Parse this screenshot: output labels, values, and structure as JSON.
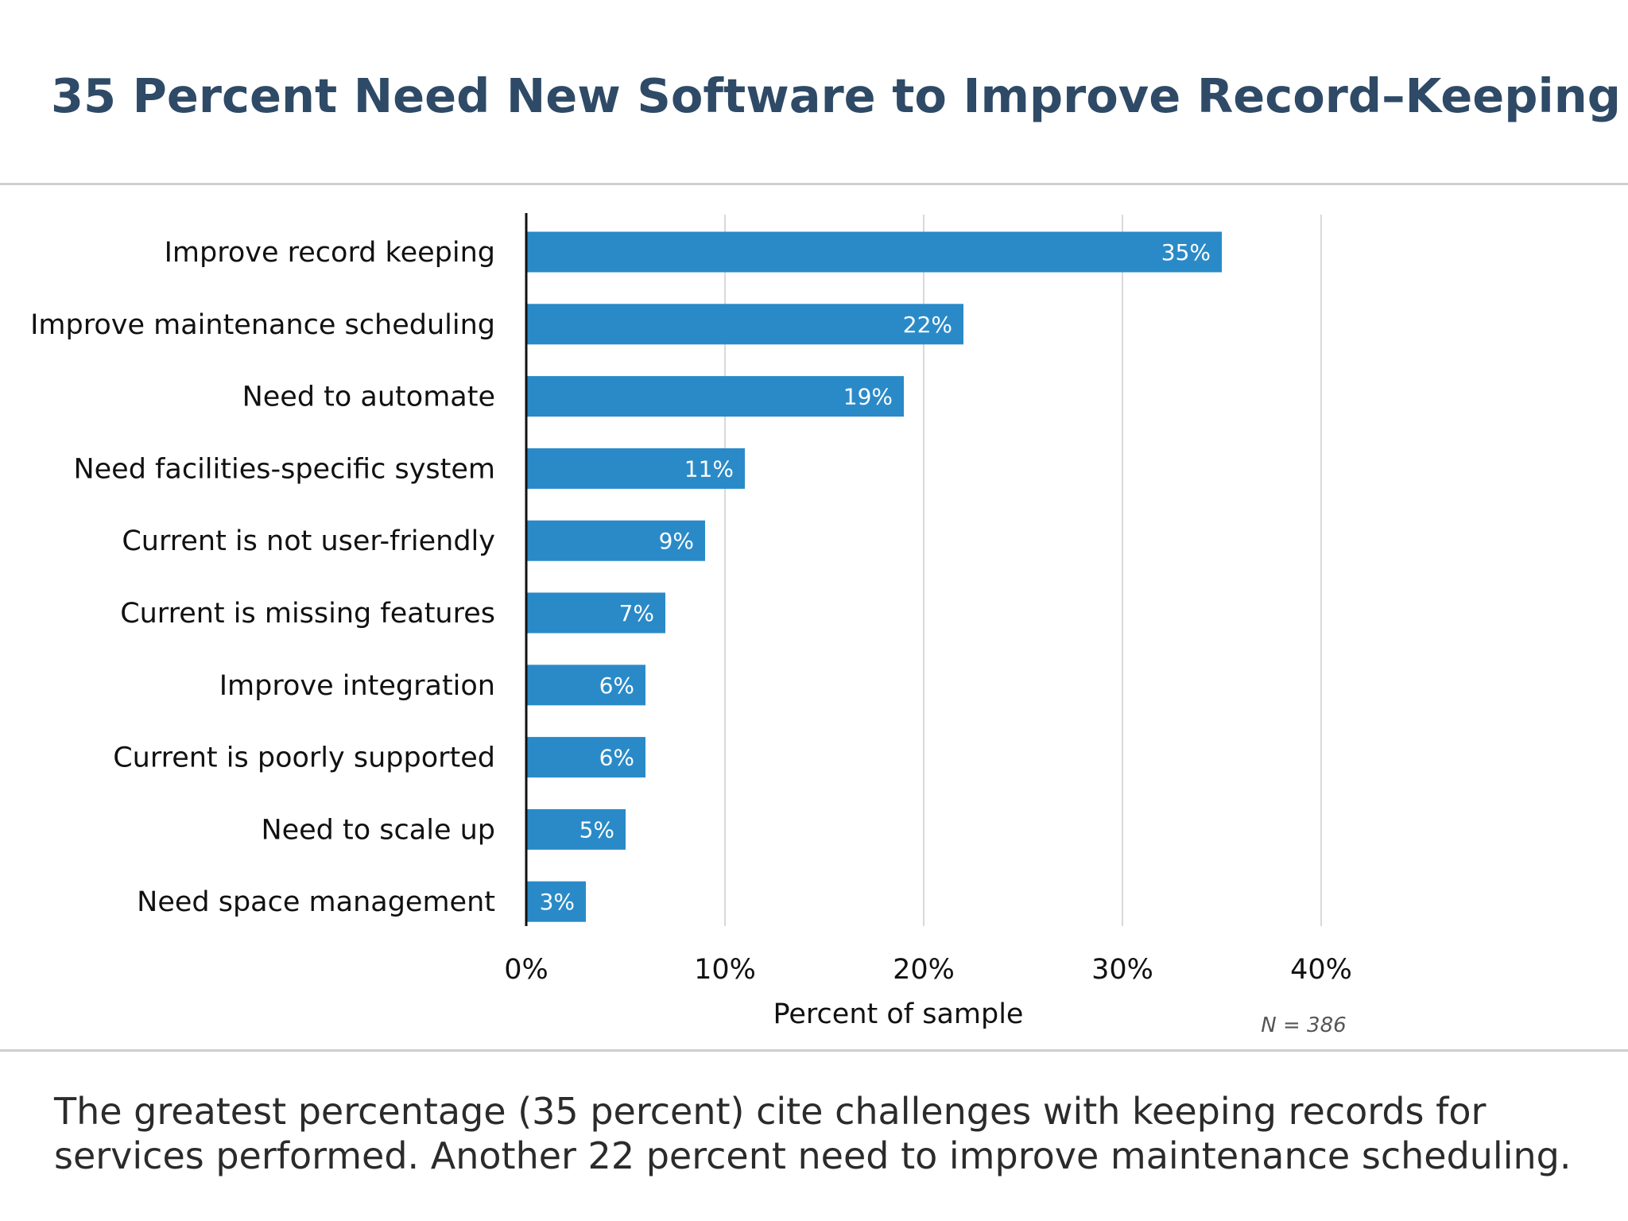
{
  "title": "35 Percent Need New Software to Improve Record–Keeping",
  "caption": "The greatest percentage (35 percent) cite challenges with keeping records for services performed. Another 22 percent need to improve maintenance scheduling.",
  "colors": {
    "bar": "#2a8ac8",
    "title": "#2e4a66",
    "gridline": "#d9d9d9"
  },
  "chart_data": {
    "type": "bar",
    "orientation": "horizontal",
    "categories": [
      "Improve record keeping",
      "Improve maintenance scheduling",
      "Need to automate",
      "Need facilities-specific system",
      "Current is not user-friendly",
      "Current is missing features",
      "Improve integration",
      "Current is poorly supported",
      "Need to scale up",
      "Need space management"
    ],
    "values": [
      35,
      22,
      19,
      11,
      9,
      7,
      6,
      6,
      5,
      3
    ],
    "value_labels": [
      "35%",
      "22%",
      "19%",
      "11%",
      "9%",
      "7%",
      "6%",
      "6%",
      "5%",
      "3%"
    ],
    "xlim": [
      0,
      40
    ],
    "xticks": [
      0,
      10,
      20,
      30,
      40
    ],
    "xtick_labels": [
      "0%",
      "10%",
      "20%",
      "30%",
      "40%"
    ],
    "xlabel": "Percent of sample",
    "ylabel": "",
    "grid": "vertical",
    "legend": "none",
    "note": "N = 386"
  }
}
